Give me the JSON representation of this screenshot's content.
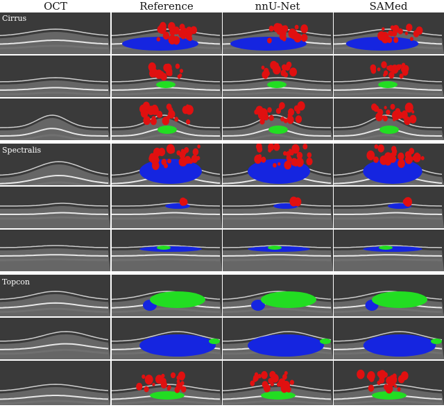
{
  "columns": [
    "OCT",
    "Reference",
    "nnU-Net",
    "SAMed"
  ],
  "devices": [
    "Cirrus",
    "Spectralis",
    "Topcon"
  ],
  "colors": {
    "background_scan": "#3a3a3a",
    "retina": "#8a8a8a",
    "fluid_red": "#e01010",
    "fluid_green": "#22dd22",
    "fluid_blue": "#1525e0"
  }
}
